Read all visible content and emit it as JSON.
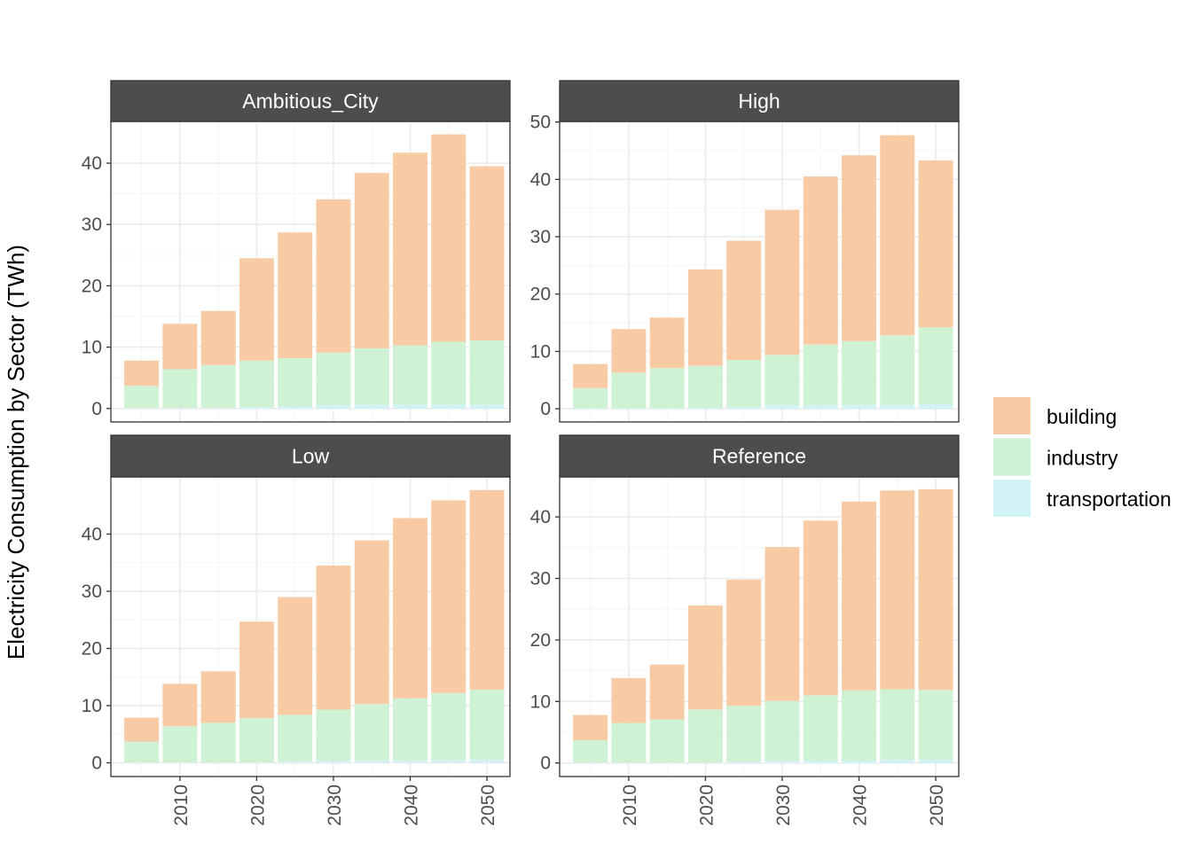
{
  "chart_data": {
    "type": "bar",
    "stacked": true,
    "ylabel": "Electricity Consumption by Sector (TWh)",
    "xlabel": "",
    "x": [
      2005,
      2010,
      2015,
      2020,
      2025,
      2030,
      2035,
      2040,
      2045,
      2050
    ],
    "x_ticks": [
      2010,
      2020,
      2030,
      2040,
      2050
    ],
    "x_range": [
      2001,
      2053
    ],
    "legend": {
      "position": "right",
      "items": [
        {
          "name": "building",
          "color": "#F8CBA4"
        },
        {
          "name": "industry",
          "color": "#CEF2D3"
        },
        {
          "name": "transportation",
          "color": "#D1F3F6"
        }
      ]
    },
    "colors": {
      "strip_bg": "#4d4d4d",
      "grid_major": "#ebebeb",
      "grid_minor": "#f5f5f5",
      "panel_border": "#333333",
      "tick_text": "#4d4d4d"
    },
    "panels": [
      {
        "title": "Ambitious_City",
        "ylim": [
          -2.2,
          46.8
        ],
        "y_ticks": [
          0,
          10,
          20,
          30,
          40
        ],
        "series": [
          {
            "name": "transportation",
            "values": [
              0.1,
              0.1,
              0.1,
              0.2,
              0.3,
              0.5,
              0.6,
              0.6,
              0.6,
              0.6
            ]
          },
          {
            "name": "industry",
            "values": [
              3.6,
              6.3,
              7.0,
              7.6,
              7.9,
              8.6,
              9.2,
              9.7,
              10.3,
              10.5
            ]
          },
          {
            "name": "building",
            "values": [
              4.1,
              7.4,
              8.8,
              16.7,
              20.5,
              25.0,
              28.6,
              31.4,
              33.8,
              28.4
            ]
          }
        ]
      },
      {
        "title": "High",
        "ylim": [
          -2.3,
          50.1
        ],
        "y_ticks": [
          0,
          10,
          20,
          30,
          40,
          50
        ],
        "series": [
          {
            "name": "transportation",
            "values": [
              0.1,
              0.1,
              0.1,
              0.2,
              0.3,
              0.6,
              0.6,
              0.7,
              0.7,
              0.8
            ]
          },
          {
            "name": "industry",
            "values": [
              3.5,
              6.2,
              7.0,
              7.3,
              8.2,
              8.8,
              10.6,
              11.1,
              12.1,
              13.4
            ]
          },
          {
            "name": "building",
            "values": [
              4.2,
              7.6,
              8.8,
              16.8,
              20.8,
              25.3,
              29.3,
              32.4,
              34.9,
              29.1
            ]
          }
        ]
      },
      {
        "title": "Low",
        "ylim": [
          -2.4,
          50.0
        ],
        "y_ticks": [
          0,
          10,
          20,
          30,
          40
        ],
        "series": [
          {
            "name": "transportation",
            "values": [
              0.1,
              0.1,
              0.1,
              0.1,
              0.2,
              0.3,
              0.4,
              0.4,
              0.5,
              0.6
            ]
          },
          {
            "name": "industry",
            "values": [
              3.6,
              6.3,
              6.9,
              7.7,
              8.2,
              9.0,
              9.9,
              10.9,
              11.7,
              12.2
            ]
          },
          {
            "name": "building",
            "values": [
              4.2,
              7.4,
              9.0,
              16.9,
              20.6,
              25.2,
              28.6,
              31.5,
              33.7,
              34.9
            ]
          }
        ]
      },
      {
        "title": "Reference",
        "ylim": [
          -2.2,
          46.5
        ],
        "y_ticks": [
          0,
          10,
          20,
          30,
          40
        ],
        "series": [
          {
            "name": "transportation",
            "values": [
              0.1,
              0.1,
              0.1,
              0.1,
              0.2,
              0.3,
              0.4,
              0.4,
              0.5,
              0.5
            ]
          },
          {
            "name": "industry",
            "values": [
              3.6,
              6.4,
              7.0,
              8.6,
              9.1,
              9.8,
              10.6,
              11.4,
              11.5,
              11.4
            ]
          },
          {
            "name": "building",
            "values": [
              4.1,
              7.3,
              8.9,
              16.9,
              20.5,
              25.0,
              28.4,
              30.7,
              32.3,
              32.6
            ]
          }
        ]
      }
    ]
  }
}
